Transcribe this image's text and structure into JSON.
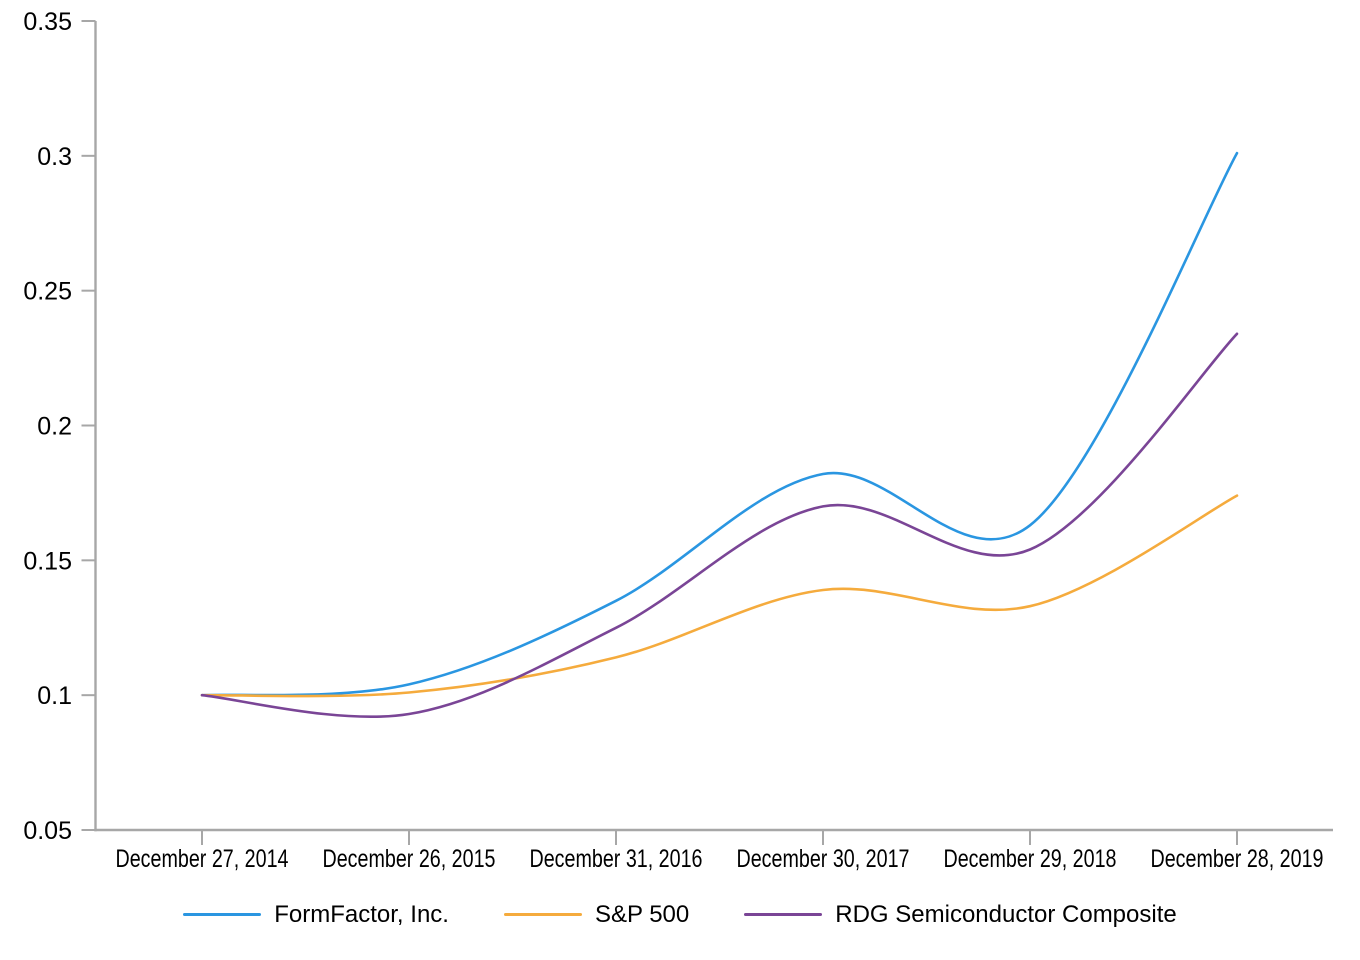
{
  "chart_data": {
    "type": "line",
    "title": "",
    "x_categories": [
      "December 27, 2014",
      "December 26, 2015",
      "December 31, 2016",
      "December 30, 2017",
      "December 29, 2018",
      "December 28, 2019"
    ],
    "series": [
      {
        "name": "FormFactor, Inc.",
        "color": "#2A96E1",
        "values": [
          0.1,
          0.104,
          0.135,
          0.182,
          0.163,
          0.301
        ]
      },
      {
        "name": "S&P 500",
        "color": "#F5AB3D",
        "values": [
          0.1,
          0.101,
          0.114,
          0.139,
          0.133,
          0.174
        ]
      },
      {
        "name": "RDG Semiconductor Composite",
        "color": "#7A4596",
        "values": [
          0.1,
          0.093,
          0.125,
          0.17,
          0.154,
          0.234
        ]
      }
    ],
    "y_axis": {
      "tick_labels": [
        "0.05",
        "0.1",
        "0.15",
        "0.2",
        "0.25",
        "0.3",
        "0.35"
      ],
      "min": 0.05,
      "max": 0.35
    },
    "legend_position": "bottom",
    "grid": false,
    "line_style": "smooth",
    "axis_color": "#A7A7A7",
    "label_color": "#000000"
  }
}
